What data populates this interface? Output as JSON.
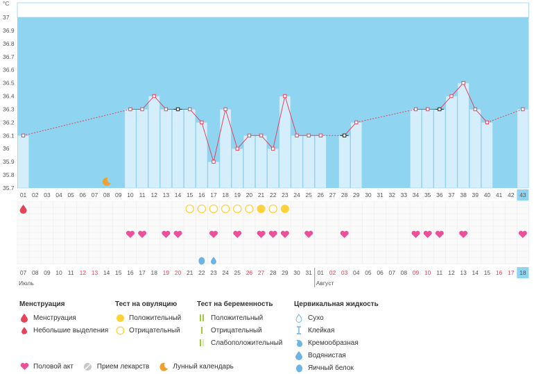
{
  "y_unit": "°C",
  "y_ticks": [
    "37",
    "36.9",
    "36.8",
    "36.7",
    "36.6",
    "36.5",
    "36.4",
    "36.3",
    "36.2",
    "36.1",
    "36",
    "35.9",
    "35.8",
    "35.7"
  ],
  "chart_data": {
    "type": "line",
    "ylim": [
      35.7,
      37.0
    ],
    "ylabel": "°C",
    "cycle_days": [
      "01",
      "02",
      "03",
      "04",
      "05",
      "06",
      "07",
      "08",
      "09",
      "10",
      "11",
      "12",
      "13",
      "14",
      "15",
      "16",
      "17",
      "18",
      "19",
      "20",
      "21",
      "22",
      "23",
      "24",
      "25",
      "26",
      "27",
      "28",
      "29",
      "30",
      "31",
      "32",
      "33",
      "34",
      "35",
      "36",
      "37",
      "38",
      "39",
      "40",
      "41",
      "42",
      "43"
    ],
    "dates": [
      "07",
      "08",
      "09",
      "10",
      "11",
      "12",
      "13",
      "14",
      "15",
      "16",
      "17",
      "18",
      "19",
      "20",
      "21",
      "22",
      "23",
      "24",
      "25",
      "26",
      "27",
      "28",
      "29",
      "30",
      "31",
      "01",
      "02",
      "03",
      "04",
      "05",
      "06",
      "07",
      "08",
      "09",
      "10",
      "11",
      "12",
      "13",
      "14",
      "15",
      "16",
      "17",
      "18"
    ],
    "red_dates": [
      5,
      6,
      12,
      13,
      19,
      20,
      26,
      27,
      33,
      34,
      40,
      41
    ],
    "month_labels": [
      {
        "text": "Июль",
        "day_index": 0
      },
      {
        "text": "Август",
        "day_index": 25
      }
    ],
    "highlight_day": 42,
    "series": [
      {
        "values": [
          36.1,
          null,
          null,
          null,
          null,
          null,
          null,
          null,
          null,
          36.3,
          36.3,
          36.4,
          36.3,
          36.3,
          36.3,
          36.2,
          35.9,
          36.3,
          36.0,
          36.1,
          36.1,
          36.0,
          36.4,
          36.1,
          36.1,
          36.1,
          null,
          36.1,
          36.2,
          null,
          null,
          null,
          null,
          36.3,
          36.3,
          36.3,
          36.4,
          36.5,
          36.3,
          36.2,
          null,
          null,
          36.3
        ]
      }
    ],
    "black_marker_days": [
      13,
      27,
      35
    ],
    "moon_day": 7,
    "menstruation_days": [
      0
    ],
    "ovulation_negative_days": [
      14,
      15,
      16,
      17,
      18,
      19,
      21
    ],
    "ovulation_positive_days": [
      20,
      22
    ],
    "intercourse_days": [
      9,
      10,
      12,
      13,
      16,
      18,
      20,
      21,
      22,
      24,
      27,
      33,
      34,
      35,
      37,
      42
    ],
    "cervical_fluid": [
      {
        "day": 15,
        "kind": "egg-white"
      },
      {
        "day": 16,
        "kind": "watery"
      }
    ]
  },
  "legend": {
    "menstruation": {
      "title": "Менструация",
      "items": [
        "Менструация",
        "Небольшие выделения"
      ]
    },
    "ovulation_test": {
      "title": "Тест на овуляцию",
      "items": [
        "Положительный",
        "Отрицательный"
      ]
    },
    "pregnancy_test": {
      "title": "Тест на беременность",
      "items": [
        "Положительный",
        "Отрицательный",
        "Слабоположительный"
      ]
    },
    "cervical_fluid": {
      "title": "Цервикальная жидкость",
      "items": [
        "Сухо",
        "Клейкая",
        "Кремообразная",
        "Водянистая",
        "Яичный белок"
      ]
    },
    "bottom": [
      "Половой акт",
      "Прием лекарств",
      "Лунный календарь"
    ]
  },
  "colors": {
    "sky": "#8fd4f0",
    "bar": "#d5eefc",
    "bar_edge": "#9fd3ef",
    "line": "#e8425a",
    "heart": "#ee4f9a",
    "ovulation": "#ffd23c",
    "moon": "#f0a030",
    "highlight": "#8fd4f0"
  }
}
